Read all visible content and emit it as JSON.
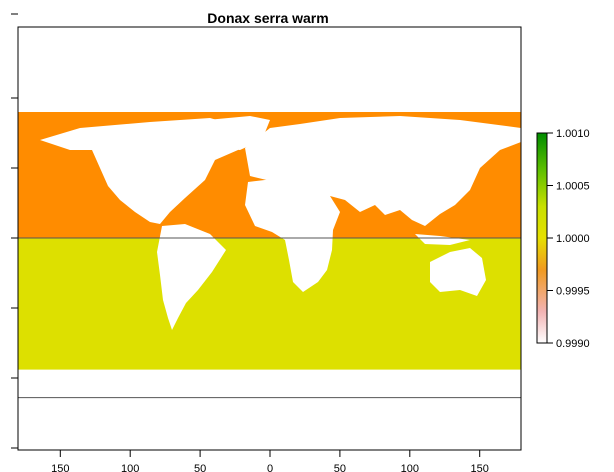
{
  "chart_data": {
    "type": "heatmap",
    "title": "Donax serra warm",
    "xlabel": "",
    "ylabel": "",
    "xlim": [
      -180,
      180
    ],
    "ylim": [
      -90,
      90
    ],
    "x_ticks": [
      -150,
      -100,
      -50,
      0,
      50,
      100,
      150
    ],
    "x_tick_labels": [
      "150",
      "100",
      "50",
      "0",
      "50",
      "100",
      "150"
    ],
    "reference_lines_lat": [
      0,
      -57
    ],
    "regions": [
      {
        "lat_range": [
          0,
          45
        ],
        "value": 0.99975,
        "color": "#FF8C00"
      },
      {
        "lat_range": [
          -47,
          0
        ],
        "value": 1.0,
        "color": "#DDE000"
      }
    ],
    "land_color": "#FFFFFF",
    "legend": {
      "placement": "right",
      "min": 0.999,
      "max": 1.001,
      "ticks": [
        "1.0010",
        "1.0005",
        "1.0000",
        "0.9995",
        "0.9990"
      ],
      "colors": [
        "#FFFFFF",
        "#F2B3B3",
        "#FF8C00",
        "#E6E000",
        "#C8E000",
        "#5FC000",
        "#008C00"
      ]
    }
  }
}
